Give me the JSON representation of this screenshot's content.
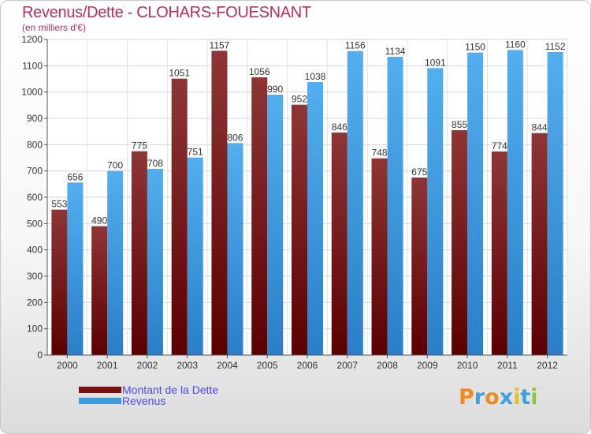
{
  "header": {
    "title": "Revenus/Dette - CLOHARS-FOUESNANT",
    "subtitle": "(en milliers d'€)"
  },
  "chart_data": {
    "type": "bar",
    "title": "Revenus/Dette - CLOHARS-FOUESNANT",
    "subtitle": "(en milliers d'€)",
    "categories": [
      "2000",
      "2001",
      "2002",
      "2003",
      "2004",
      "2005",
      "2006",
      "2007",
      "2008",
      "2009",
      "2010",
      "2011",
      "2012"
    ],
    "series": [
      {
        "name": "Montant de la Dette",
        "color": "#7a0f0f",
        "values": [
          553,
          490,
          775,
          1051,
          1157,
          1056,
          952,
          846,
          748,
          675,
          855,
          774,
          844
        ]
      },
      {
        "name": "Revenus",
        "color": "#3d9be0",
        "values": [
          656,
          700,
          708,
          751,
          806,
          990,
          1038,
          1156,
          1134,
          1091,
          1150,
          1160,
          1152
        ]
      }
    ],
    "ylim": [
      0,
      1200
    ],
    "yticks": [
      0,
      100,
      200,
      300,
      400,
      500,
      600,
      700,
      800,
      900,
      1000,
      1100,
      1200
    ],
    "grid": true,
    "legend_position": "bottom-left"
  },
  "legend": {
    "items": [
      {
        "label": "Montant de la Dette",
        "color": "#7a0f0f"
      },
      {
        "label": "Revenus",
        "color": "#3d9be0"
      }
    ]
  },
  "logo": {
    "text": "Proxiti",
    "letter_colors": [
      "#f08a1c",
      "#3fa0e0",
      "#f08a1c",
      "#3fa0e0",
      "#e8c020",
      "#3fa0e0",
      "#8cc63e"
    ]
  }
}
